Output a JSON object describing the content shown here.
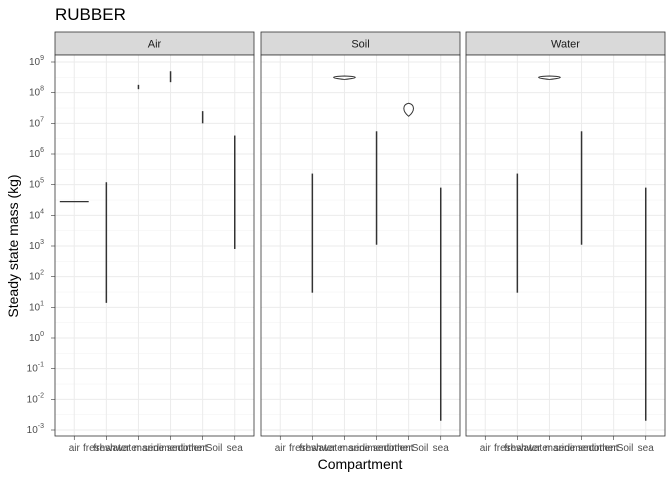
{
  "chart_data": {
    "type": "violin",
    "title": "RUBBER",
    "xlabel": "Compartment",
    "ylabel": "Steady state mass (kg)",
    "y_scale": "log10",
    "ylim": [
      0.001,
      1000000000
    ],
    "y_ticks": [
      {
        "value": 0.001,
        "base": "10",
        "exp": "-3"
      },
      {
        "value": 0.01,
        "base": "10",
        "exp": "-2"
      },
      {
        "value": 0.1,
        "base": "10",
        "exp": "-1"
      },
      {
        "value": 1,
        "base": "10",
        "exp": "0"
      },
      {
        "value": 10,
        "base": "10",
        "exp": "1"
      },
      {
        "value": 100,
        "base": "10",
        "exp": "2"
      },
      {
        "value": 1000,
        "base": "10",
        "exp": "3"
      },
      {
        "value": 10000,
        "base": "10",
        "exp": "4"
      },
      {
        "value": 100000,
        "base": "10",
        "exp": "5"
      },
      {
        "value": 1000000,
        "base": "10",
        "exp": "6"
      },
      {
        "value": 10000000,
        "base": "10",
        "exp": "7"
      },
      {
        "value": 100000000,
        "base": "10",
        "exp": "8"
      },
      {
        "value": 1000000000,
        "base": "10",
        "exp": "9"
      }
    ],
    "categories": [
      "air",
      "freshwater",
      "freshwater sediment",
      "marine sediment",
      "otherSoil",
      "sea"
    ],
    "grid": true,
    "facets": [
      {
        "name": "Air",
        "violins": [
          {
            "category": "air",
            "min": 28000,
            "max": 28000,
            "width": 0.9
          },
          {
            "category": "freshwater",
            "min": 14,
            "max": 120000,
            "width": 0.02
          },
          {
            "category": "freshwater sediment",
            "min": 130000000,
            "max": 180000000,
            "width": 0.03
          },
          {
            "category": "marine sediment",
            "min": 220000000,
            "max": 500000000,
            "width": 0.03
          },
          {
            "category": "otherSoil",
            "min": 10000000,
            "max": 25000000,
            "width": 0.03
          },
          {
            "category": "sea",
            "min": 800,
            "max": 4000000,
            "width": 0.02
          }
        ]
      },
      {
        "name": "Soil",
        "violins": [
          {
            "category": "freshwater",
            "min": 30,
            "max": 230000,
            "width": 0.03
          },
          {
            "category": "freshwater sediment",
            "min": 270000000,
            "max": 350000000,
            "width": 0.9
          },
          {
            "category": "marine sediment",
            "min": 1100,
            "max": 5500000,
            "width": 0.04
          },
          {
            "category": "otherSoil",
            "min": 17000000,
            "max": 45000000,
            "width": 0.4
          },
          {
            "category": "sea",
            "min": 0.002,
            "max": 80000,
            "width": 0.03
          }
        ]
      },
      {
        "name": "Water",
        "violins": [
          {
            "category": "freshwater",
            "min": 30,
            "max": 230000,
            "width": 0.03
          },
          {
            "category": "freshwater sediment",
            "min": 270000000,
            "max": 350000000,
            "width": 0.9
          },
          {
            "category": "marine sediment",
            "min": 1100,
            "max": 5500000,
            "width": 0.04
          },
          {
            "category": "sea",
            "min": 0.002,
            "max": 80000,
            "width": 0.03
          }
        ]
      }
    ]
  }
}
